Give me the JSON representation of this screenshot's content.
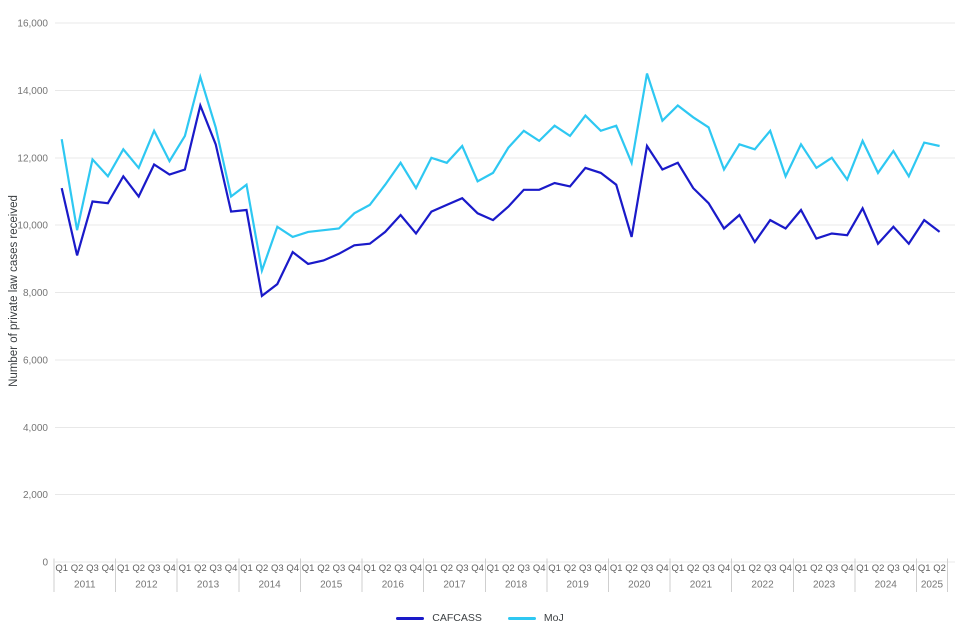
{
  "chart_data": {
    "type": "line",
    "title": "",
    "ylabel": "Number of private law cases received",
    "ylim": [
      0,
      16000
    ],
    "ytick_step": 2000,
    "ytick_labels": [
      "0",
      "2,000",
      "4,000",
      "6,000",
      "8,000",
      "10,000",
      "12,000",
      "14,000",
      "16,000"
    ],
    "grid": true,
    "legend_position": "bottom",
    "x": {
      "year_groups": [
        {
          "year": "2011",
          "quarters": [
            "Q1",
            "Q2",
            "Q3",
            "Q4"
          ]
        },
        {
          "year": "2012",
          "quarters": [
            "Q1",
            "Q2",
            "Q3",
            "Q4"
          ]
        },
        {
          "year": "2013",
          "quarters": [
            "Q1",
            "Q2",
            "Q3",
            "Q4"
          ]
        },
        {
          "year": "2014",
          "quarters": [
            "Q1",
            "Q2",
            "Q3",
            "Q4"
          ]
        },
        {
          "year": "2015",
          "quarters": [
            "Q1",
            "Q2",
            "Q3",
            "Q4"
          ]
        },
        {
          "year": "2016",
          "quarters": [
            "Q1",
            "Q2",
            "Q3",
            "Q4"
          ]
        },
        {
          "year": "2017",
          "quarters": [
            "Q1",
            "Q2",
            "Q3",
            "Q4"
          ]
        },
        {
          "year": "2018",
          "quarters": [
            "Q1",
            "Q2",
            "Q3",
            "Q4"
          ]
        },
        {
          "year": "2019",
          "quarters": [
            "Q1",
            "Q2",
            "Q3",
            "Q4"
          ]
        },
        {
          "year": "2020",
          "quarters": [
            "Q1",
            "Q2",
            "Q3",
            "Q4"
          ]
        },
        {
          "year": "2021",
          "quarters": [
            "Q1",
            "Q2",
            "Q3",
            "Q4"
          ]
        },
        {
          "year": "2022",
          "quarters": [
            "Q1",
            "Q2",
            "Q3",
            "Q4"
          ]
        },
        {
          "year": "2023",
          "quarters": [
            "Q1",
            "Q2",
            "Q3",
            "Q4"
          ]
        },
        {
          "year": "2024",
          "quarters": [
            "Q1",
            "Q2",
            "Q3",
            "Q4"
          ]
        },
        {
          "year": "2025",
          "quarters": [
            "Q1",
            "Q2"
          ]
        }
      ]
    },
    "series": [
      {
        "name": "CAFCASS",
        "color": "#1A1AC9",
        "values": [
          11100,
          9100,
          10700,
          10650,
          11450,
          10850,
          11800,
          11500,
          11650,
          13550,
          12400,
          10400,
          10450,
          7900,
          8250,
          9200,
          8850,
          8950,
          9150,
          9400,
          9450,
          9800,
          10300,
          9750,
          10400,
          10600,
          10800,
          10350,
          10150,
          10550,
          11050,
          11050,
          11250,
          11150,
          11700,
          11550,
          11200,
          9650,
          12350,
          11650,
          11850,
          11100,
          10650,
          9900,
          10300,
          9500,
          10150,
          9900,
          10450,
          9600,
          9750,
          9700,
          10500,
          9450,
          9950,
          9450,
          10150,
          9800
        ]
      },
      {
        "name": "MoJ",
        "color": "#2EC8F2",
        "values": [
          12550,
          9850,
          11950,
          11450,
          12250,
          11700,
          12800,
          11900,
          12650,
          14400,
          12900,
          10850,
          11200,
          8650,
          9950,
          9650,
          9800,
          9850,
          9900,
          10350,
          10600,
          11200,
          11850,
          11100,
          12000,
          11850,
          12350,
          11300,
          11550,
          12300,
          12800,
          12500,
          12950,
          12650,
          13250,
          12800,
          12950,
          11850,
          14500,
          13100,
          13550,
          13200,
          12900,
          11650,
          12400,
          12250,
          12800,
          11450,
          12400,
          11700,
          12000,
          11350,
          12500,
          11550,
          12200,
          11450,
          12450,
          12350
        ]
      }
    ]
  },
  "legend": {
    "items": [
      "CAFCASS",
      "MoJ"
    ]
  },
  "colors": {
    "grid": "#E8E8E8",
    "axis_text": "#757575",
    "quarter_text": "#616161",
    "year_text": "#757575",
    "separator": "#CFCFCF",
    "ylabel_text": "#3C4043"
  }
}
